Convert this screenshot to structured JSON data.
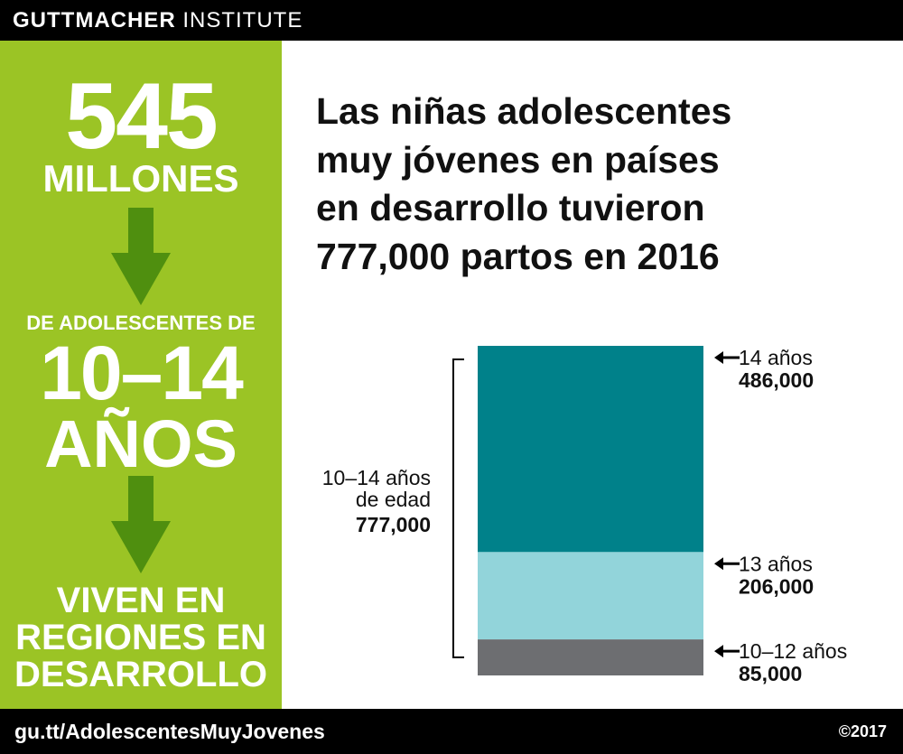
{
  "header": {
    "brand_bold": "GUTTMACHER",
    "brand_regular": "INSTITUTE"
  },
  "sidebar": {
    "big_number": "545",
    "millions": "MILLONES",
    "sub_label": "DE ADOLESCENTES DE",
    "age_range": "10–14",
    "years": "AÑOS",
    "region_lines": [
      "VIVEN EN",
      "REGIONES EN",
      "DESARROLLO"
    ]
  },
  "headline_lines": [
    "Las niñas adolescentes",
    "muy jóvenes en países",
    "en desarrollo tuvieron",
    "777,000 partos en 2016"
  ],
  "chart_data": {
    "type": "bar",
    "stacked": true,
    "categories": [
      "10–14 años de edad"
    ],
    "series": [
      {
        "name": "10–12 años",
        "values": [
          85000
        ],
        "label": "85,000",
        "color": "#6d6e71"
      },
      {
        "name": "13 años",
        "values": [
          206000
        ],
        "label": "206,000",
        "color": "#92d4da"
      },
      {
        "name": "14 años",
        "values": [
          486000
        ],
        "label": "486,000",
        "color": "#00818a"
      }
    ],
    "total": {
      "label_lines": [
        "10–14 años",
        "de edad"
      ],
      "value": 777000,
      "value_label": "777,000"
    }
  },
  "colors": {
    "green": "#9bc425",
    "dark_green": "#4f8f0f",
    "teal": "#00818a",
    "light_teal": "#92d4da",
    "gray": "#6d6e71"
  },
  "footer": {
    "url": "gu.tt/AdolescentesMuyJovenes",
    "copyright": "©2017"
  }
}
